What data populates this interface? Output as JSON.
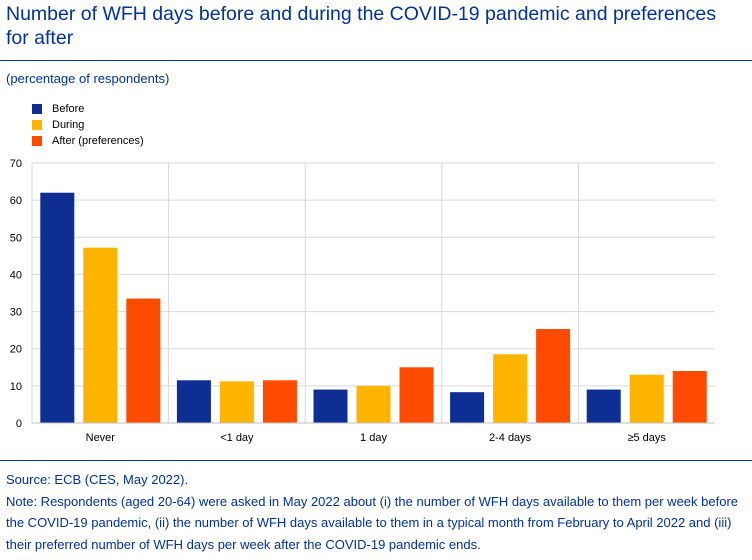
{
  "title": "Number of WFH days before and during the COVID-19 pandemic and preferences for after",
  "subtitle": "(percentage of respondents)",
  "colors": {
    "before": "#0F2E93",
    "during": "#FFB400",
    "after": "#FF4B00",
    "text": "#003299",
    "grid": "#D9D9D9"
  },
  "chart_data": {
    "type": "bar",
    "title": "Number of WFH days before and during the COVID-19 pandemic and preferences for after",
    "xlabel": "",
    "ylabel": "(percentage of respondents)",
    "categories": [
      "Never",
      "<1 day",
      "1 day",
      "2-4 days",
      "≥5 days"
    ],
    "series": [
      {
        "name": "Before",
        "values": [
          62,
          11.5,
          9,
          8.3,
          9
        ]
      },
      {
        "name": "During",
        "values": [
          47.2,
          11.2,
          10,
          18.5,
          13
        ]
      },
      {
        "name": "After (preferences)",
        "values": [
          33.5,
          11.5,
          15,
          25.3,
          14
        ]
      }
    ],
    "ylim": [
      0,
      70
    ],
    "yticks": [
      0,
      10,
      20,
      30,
      40,
      50,
      60,
      70
    ],
    "grid": true,
    "legend_position": "top-left"
  },
  "notes": {
    "source": "Source: ECB (CES, May 2022).",
    "note": "Note: Respondents (aged 20-64) were asked in May 2022 about (i) the number of WFH days available to them per week before the COVID-19 pandemic, (ii) the number of WFH days available to them in a typical month from February to April 2022 and (iii) their preferred number of WFH days per week after the COVID-19 pandemic ends."
  }
}
